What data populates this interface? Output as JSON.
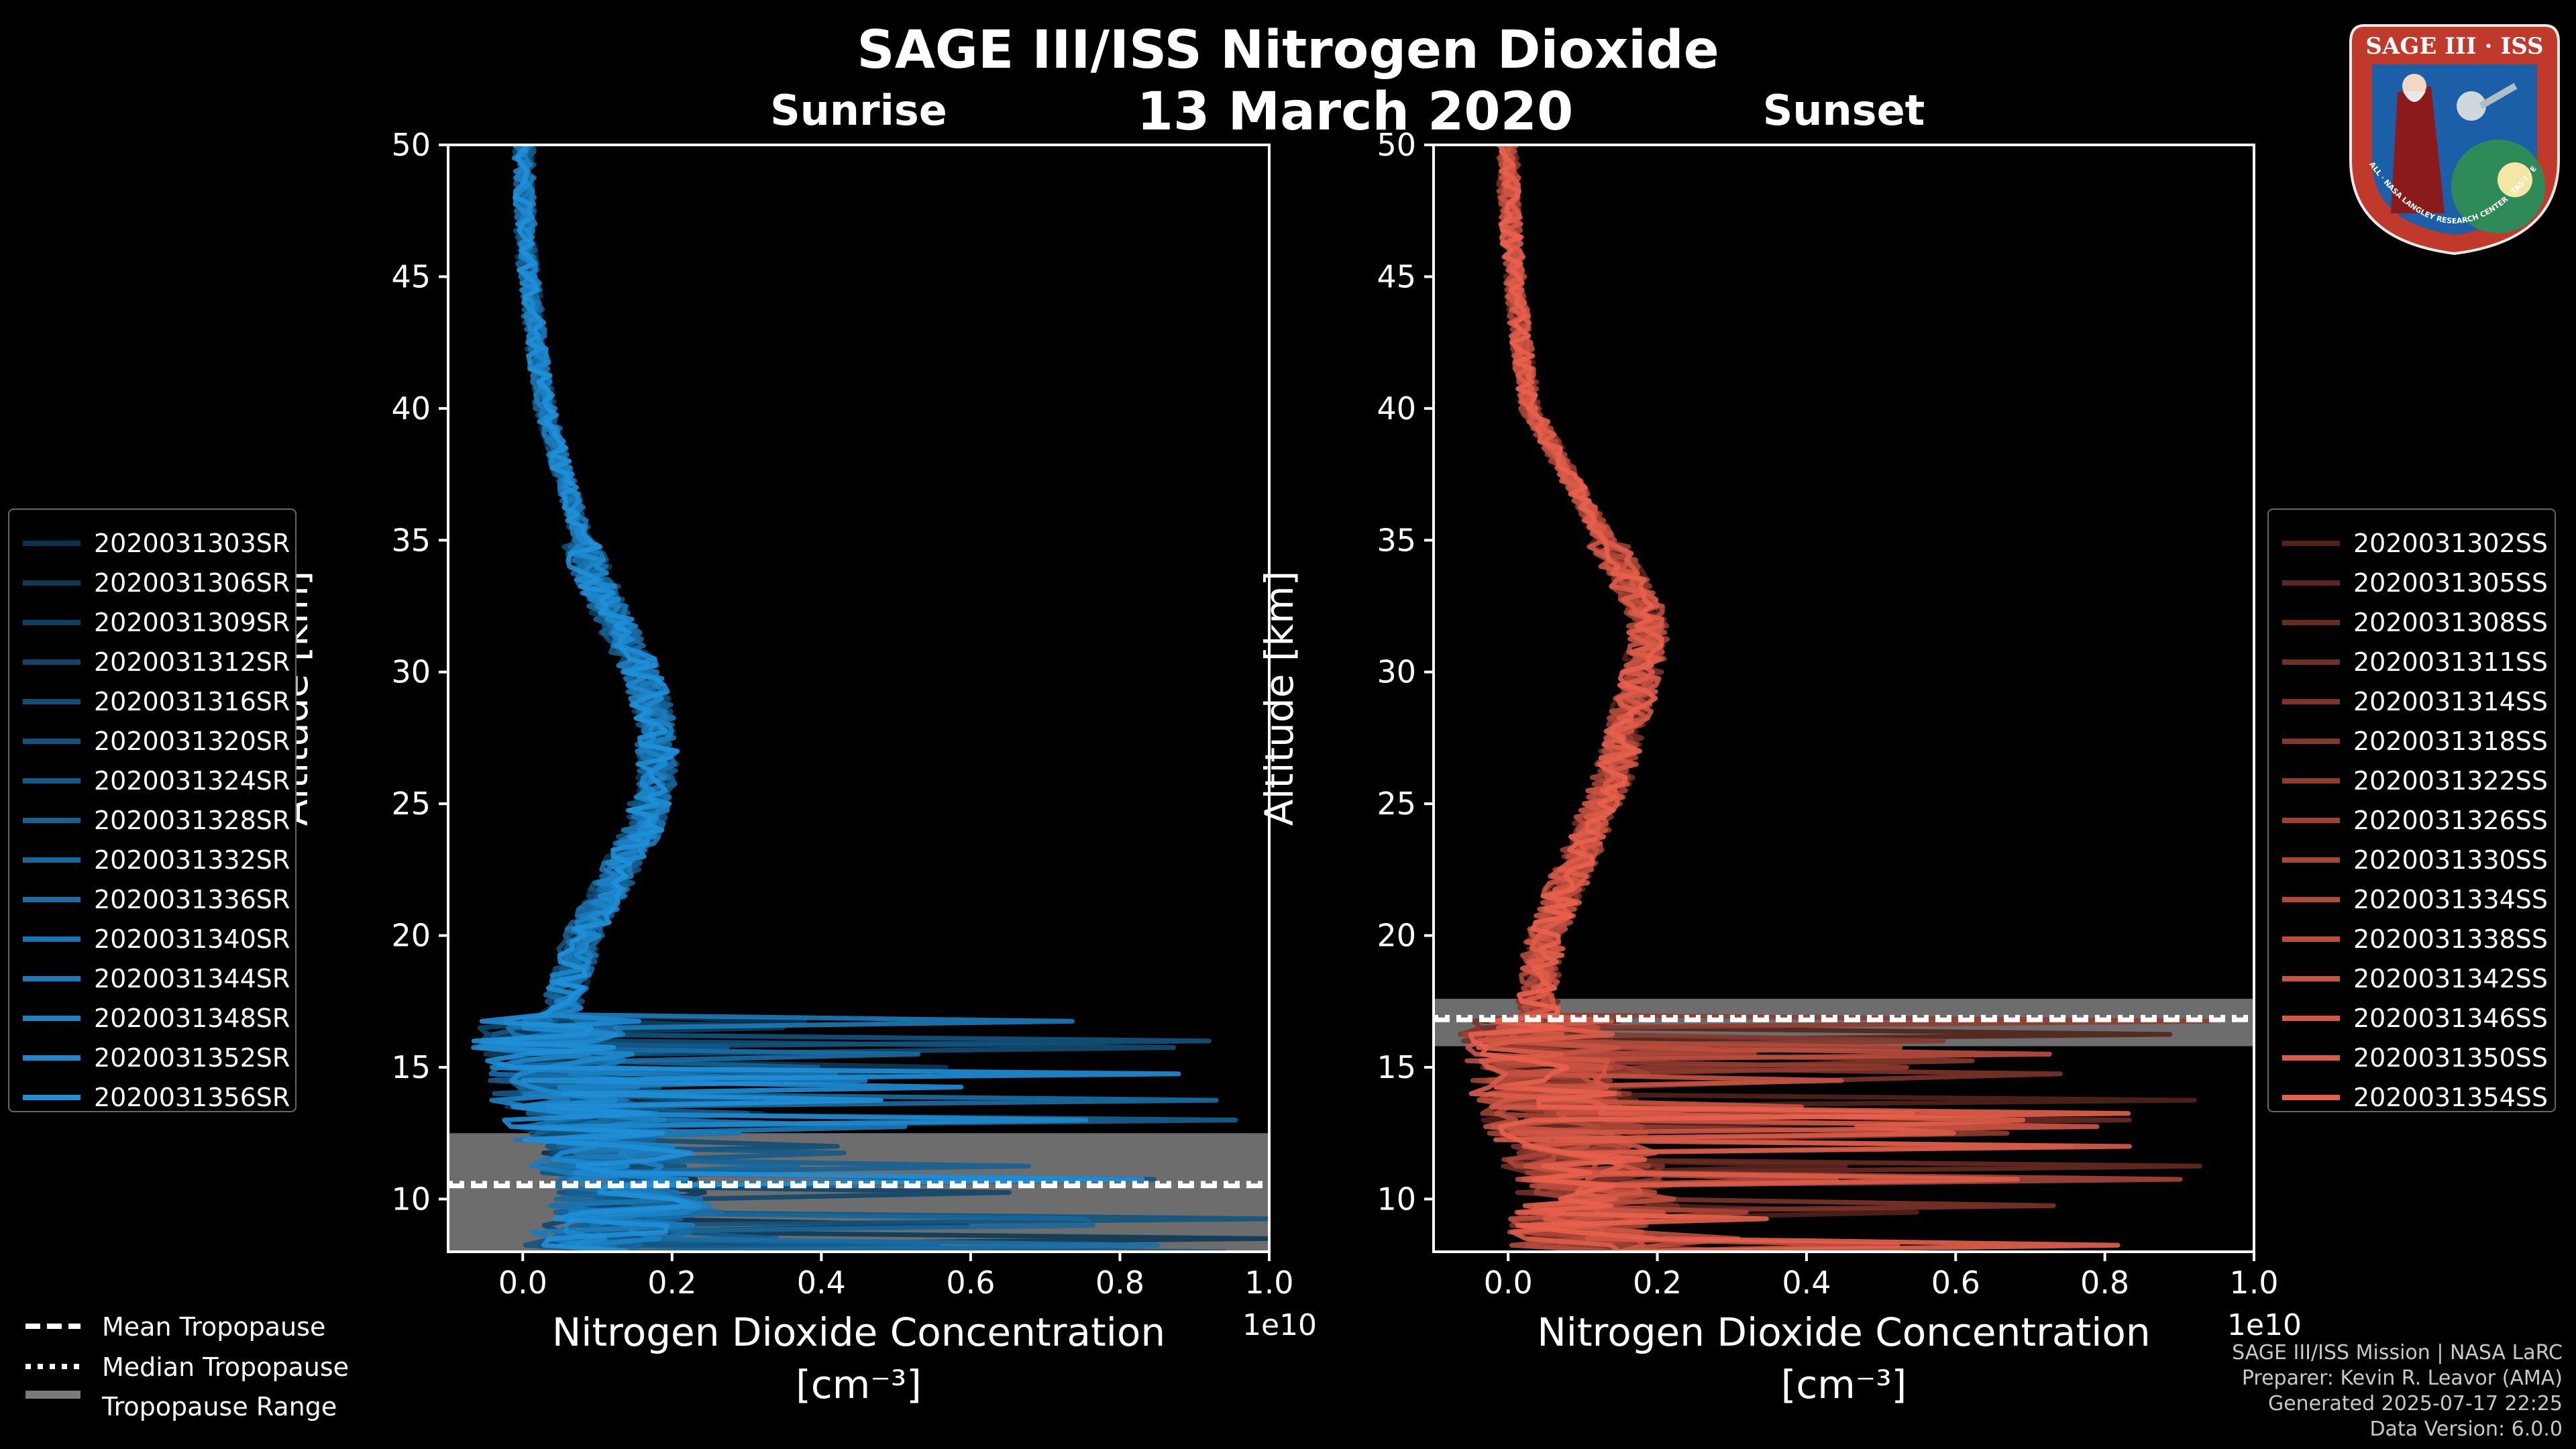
{
  "title": "SAGE III/ISS Nitrogen Dioxide",
  "date": "13 March 2020",
  "footer": [
    "SAGE III/ISS Mission | NASA LaRC",
    "Preparer: Kevin R. Leavor (AMA)",
    "Generated 2025-07-17 22:25",
    "Data Version: 6.0.0"
  ],
  "badge": {
    "text": "SAGE III · ISS",
    "ring_text": "BALL · NASA LANGLEY RESEARCH CENTER · TAS-I · ESA"
  },
  "bottom_legend": [
    {
      "label": "Mean Tropopause",
      "style": "dashed"
    },
    {
      "label": "Median Tropopause",
      "style": "dotted"
    },
    {
      "label": "Tropopause Range",
      "style": "patch"
    }
  ],
  "chart_data": [
    {
      "type": "line",
      "title": "Sunrise",
      "xlabel": "Nitrogen Dioxide Concentration",
      "xlabel_unit": "[cm⁻³]",
      "ylabel": "Altitude [km]",
      "xlim": [
        -1000000000.0,
        10000000000.0
      ],
      "ylim": [
        8,
        50
      ],
      "x_scale_label": "1e10",
      "xticks": [
        0.0,
        0.2,
        0.4,
        0.6,
        0.8,
        1.0
      ],
      "xtick_labels": [
        "0.0",
        "0.2",
        "0.4",
        "0.6",
        "0.8",
        "1.0"
      ],
      "yticks": [
        10,
        15,
        20,
        25,
        30,
        35,
        40,
        45,
        50
      ],
      "color": "#1f8fd8",
      "tropopause": {
        "mean": 10.5,
        "median": 10.6,
        "range": [
          8.0,
          12.5
        ]
      },
      "profile_anchors": [
        [
          8,
          1000000000.0
        ],
        [
          10,
          1500000000.0
        ],
        [
          12,
          1000000000.0
        ],
        [
          14,
          600000000.0
        ],
        [
          16,
          400000000.0
        ],
        [
          18,
          600000000.0
        ],
        [
          20,
          800000000.0
        ],
        [
          22,
          1200000000.0
        ],
        [
          24,
          1600000000.0
        ],
        [
          26,
          1800000000.0
        ],
        [
          28,
          1800000000.0
        ],
        [
          30,
          1600000000.0
        ],
        [
          32,
          1200000000.0
        ],
        [
          34,
          900000000.0
        ],
        [
          36,
          700000000.0
        ],
        [
          38,
          500000000.0
        ],
        [
          40,
          300000000.0
        ],
        [
          42,
          200000000.0
        ],
        [
          44,
          120000000.0
        ],
        [
          46,
          50000000.0
        ],
        [
          48,
          20000000.0
        ],
        [
          50,
          20000000.0
        ]
      ],
      "series": [
        {
          "name": "2020031303SR"
        },
        {
          "name": "2020031306SR"
        },
        {
          "name": "2020031309SR"
        },
        {
          "name": "2020031312SR"
        },
        {
          "name": "2020031316SR"
        },
        {
          "name": "2020031320SR"
        },
        {
          "name": "2020031324SR"
        },
        {
          "name": "2020031328SR"
        },
        {
          "name": "2020031332SR"
        },
        {
          "name": "2020031336SR"
        },
        {
          "name": "2020031340SR"
        },
        {
          "name": "2020031344SR"
        },
        {
          "name": "2020031348SR"
        },
        {
          "name": "2020031352SR"
        },
        {
          "name": "2020031356SR"
        }
      ]
    },
    {
      "type": "line",
      "title": "Sunset",
      "xlabel": "Nitrogen Dioxide Concentration",
      "xlabel_unit": "[cm⁻³]",
      "ylabel": "Altitude [km]",
      "xlim": [
        -1000000000.0,
        10000000000.0
      ],
      "ylim": [
        8,
        50
      ],
      "x_scale_label": "1e10",
      "xticks": [
        0.0,
        0.2,
        0.4,
        0.6,
        0.8,
        1.0
      ],
      "xtick_labels": [
        "0.0",
        "0.2",
        "0.4",
        "0.6",
        "0.8",
        "1.0"
      ],
      "yticks": [
        10,
        15,
        20,
        25,
        30,
        35,
        40,
        45,
        50
      ],
      "color": "#e8604c",
      "tropopause": {
        "mean": 16.8,
        "median": 16.9,
        "range": [
          15.8,
          17.6
        ]
      },
      "profile_anchors": [
        [
          8,
          1000000000.0
        ],
        [
          10,
          1200000000.0
        ],
        [
          12,
          900000000.0
        ],
        [
          14,
          600000000.0
        ],
        [
          16,
          400000000.0
        ],
        [
          18,
          400000000.0
        ],
        [
          20,
          500000000.0
        ],
        [
          22,
          800000000.0
        ],
        [
          24,
          1100000000.0
        ],
        [
          26,
          1400000000.0
        ],
        [
          28,
          1600000000.0
        ],
        [
          30,
          1800000000.0
        ],
        [
          32,
          1900000000.0
        ],
        [
          34,
          1500000000.0
        ],
        [
          36,
          1100000000.0
        ],
        [
          38,
          700000000.0
        ],
        [
          40,
          300000000.0
        ],
        [
          42,
          200000000.0
        ],
        [
          44,
          120000000.0
        ],
        [
          46,
          60000000.0
        ],
        [
          48,
          10000000.0
        ],
        [
          50,
          0
        ]
      ],
      "series": [
        {
          "name": "2020031302SS"
        },
        {
          "name": "2020031305SS"
        },
        {
          "name": "2020031308SS"
        },
        {
          "name": "2020031311SS"
        },
        {
          "name": "2020031314SS"
        },
        {
          "name": "2020031318SS"
        },
        {
          "name": "2020031322SS"
        },
        {
          "name": "2020031326SS"
        },
        {
          "name": "2020031330SS"
        },
        {
          "name": "2020031334SS"
        },
        {
          "name": "2020031338SS"
        },
        {
          "name": "2020031342SS"
        },
        {
          "name": "2020031346SS"
        },
        {
          "name": "2020031350SS"
        },
        {
          "name": "2020031354SS"
        }
      ]
    }
  ]
}
